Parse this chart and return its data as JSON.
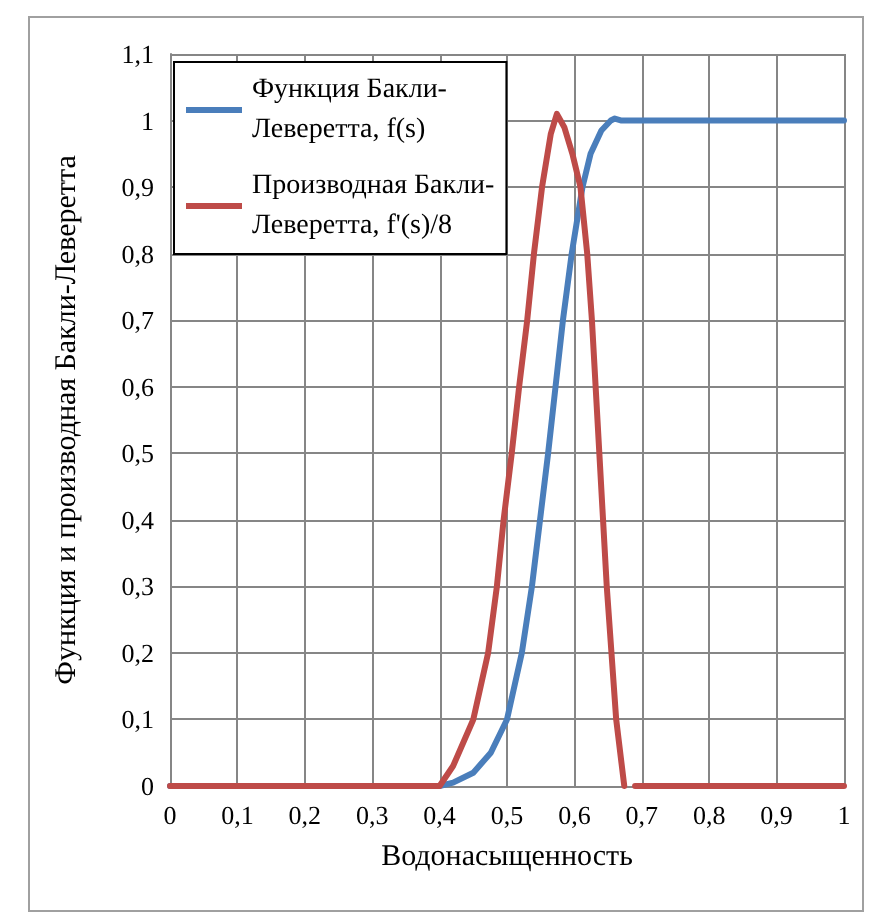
{
  "chart_data": {
    "type": "line",
    "xlabel": "Водонасыщенность",
    "ylabel": "Функция и производная Бакли-Леверетта",
    "xlim": [
      0,
      1
    ],
    "xticks": [
      {
        "value": 0,
        "label": "0"
      },
      {
        "value": 0.1,
        "label": "0,1"
      },
      {
        "value": 0.2,
        "label": "0,2"
      },
      {
        "value": 0.3,
        "label": "0,3"
      },
      {
        "value": 0.4,
        "label": "0,4"
      },
      {
        "value": 0.5,
        "label": "0,5"
      },
      {
        "value": 0.6,
        "label": "0,6"
      },
      {
        "value": 0.7,
        "label": "0,7"
      },
      {
        "value": 0.8,
        "label": "0,8"
      },
      {
        "value": 0.9,
        "label": "0,9"
      },
      {
        "value": 1,
        "label": "1"
      }
    ],
    "ylim": [
      0,
      1.1
    ],
    "yticks": [
      {
        "value": 0,
        "label": "0"
      },
      {
        "value": 0.1,
        "label": "0,1"
      },
      {
        "value": 0.2,
        "label": "0,2"
      },
      {
        "value": 0.3,
        "label": "0,3"
      },
      {
        "value": 0.4,
        "label": "0,4"
      },
      {
        "value": 0.5,
        "label": "0,5"
      },
      {
        "value": 0.6,
        "label": "0,6"
      },
      {
        "value": 0.7,
        "label": "0,7"
      },
      {
        "value": 0.8,
        "label": "0,8"
      },
      {
        "value": 0.9,
        "label": "0,9"
      },
      {
        "value": 1,
        "label": "1"
      },
      {
        "value": 1.1,
        "label": "1,1"
      }
    ],
    "grid": true,
    "legend": "top left",
    "marker": "none",
    "line_style": "solid",
    "series": [
      {
        "name": "Функция Бакли-Леверетта, f(s)",
        "color": "#4a7ebb",
        "x": [
          0,
          0.4,
          0.42,
          0.45,
          0.476,
          0.5,
          0.522,
          0.537,
          0.549,
          0.561,
          0.572,
          0.583,
          0.596,
          0.612,
          0.624,
          0.64,
          0.654,
          0.66,
          0.67,
          0.7,
          1
        ],
        "values": [
          0,
          0,
          0.005,
          0.02,
          0.05,
          0.1,
          0.2,
          0.3,
          0.4,
          0.5,
          0.6,
          0.7,
          0.8,
          0.9,
          0.95,
          0.985,
          1.0,
          1.003,
          1.0,
          1.0,
          1.0
        ]
      },
      {
        "name": "Производная Бакли-Леверетта, f'(s)/8",
        "color": "#be4b48",
        "x": [
          0,
          0.4,
          0.42,
          0.45,
          0.472,
          0.485,
          0.495,
          0.507,
          0.518,
          0.53,
          0.54,
          0.552,
          0.565,
          0.574,
          0.585,
          0.597,
          0.609,
          0.619,
          0.626,
          0.637,
          0.648,
          0.662,
          0.674,
          0.68,
          0.69,
          1
        ],
        "values": [
          0,
          0,
          0.03,
          0.1,
          0.2,
          0.3,
          0.4,
          0.5,
          0.6,
          0.7,
          0.8,
          0.9,
          0.98,
          1.01,
          0.99,
          0.95,
          0.9,
          0.8,
          0.7,
          0.5,
          0.3,
          0.1,
          0,
          null,
          0,
          0
        ]
      }
    ]
  }
}
